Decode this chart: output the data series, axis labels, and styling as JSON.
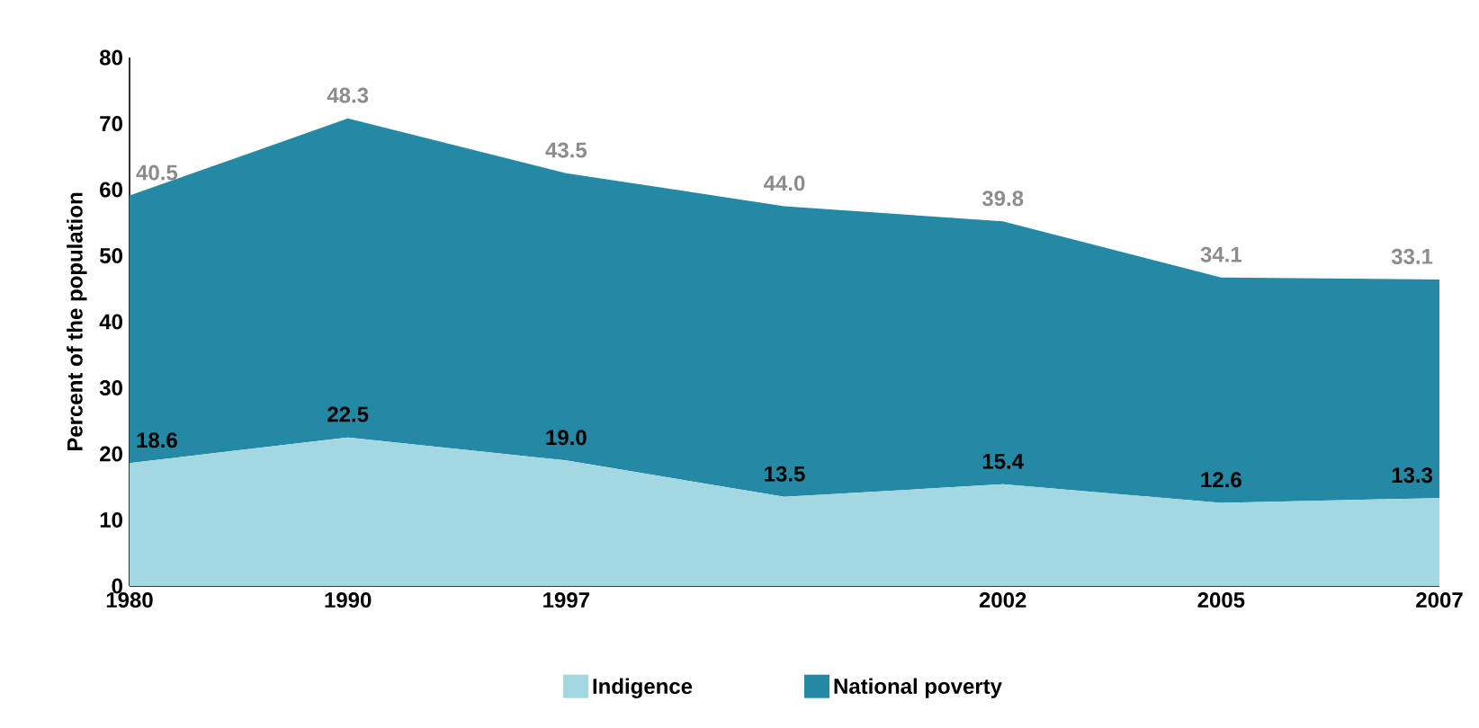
{
  "chart_data": {
    "type": "area",
    "stacked": true,
    "ylabel": "Percent of the population",
    "categories": [
      "1980",
      "1990",
      "1997",
      null,
      "2002",
      "2005",
      "2007"
    ],
    "ylim": [
      0,
      80
    ],
    "yticks": [
      0,
      10,
      20,
      30,
      40,
      50,
      60,
      70,
      80
    ],
    "grid": false,
    "legend": "bottom",
    "series": [
      {
        "name": "Indigence",
        "color": "#a3d8e3",
        "values": [
          18.6,
          22.5,
          19.0,
          13.5,
          15.4,
          12.6,
          13.3
        ],
        "value_labels": [
          "18.6",
          "22.5",
          "19.0",
          "13.5",
          "15.4",
          "12.6",
          "13.3"
        ]
      },
      {
        "name": "National poverty",
        "color": "#2389a5",
        "values": [
          40.5,
          48.3,
          43.5,
          44.0,
          39.8,
          34.1,
          33.1
        ],
        "value_labels": [
          "40.5",
          "48.3",
          "43.5",
          "44.0",
          "39.8",
          "34.1",
          "33.1"
        ]
      }
    ]
  }
}
